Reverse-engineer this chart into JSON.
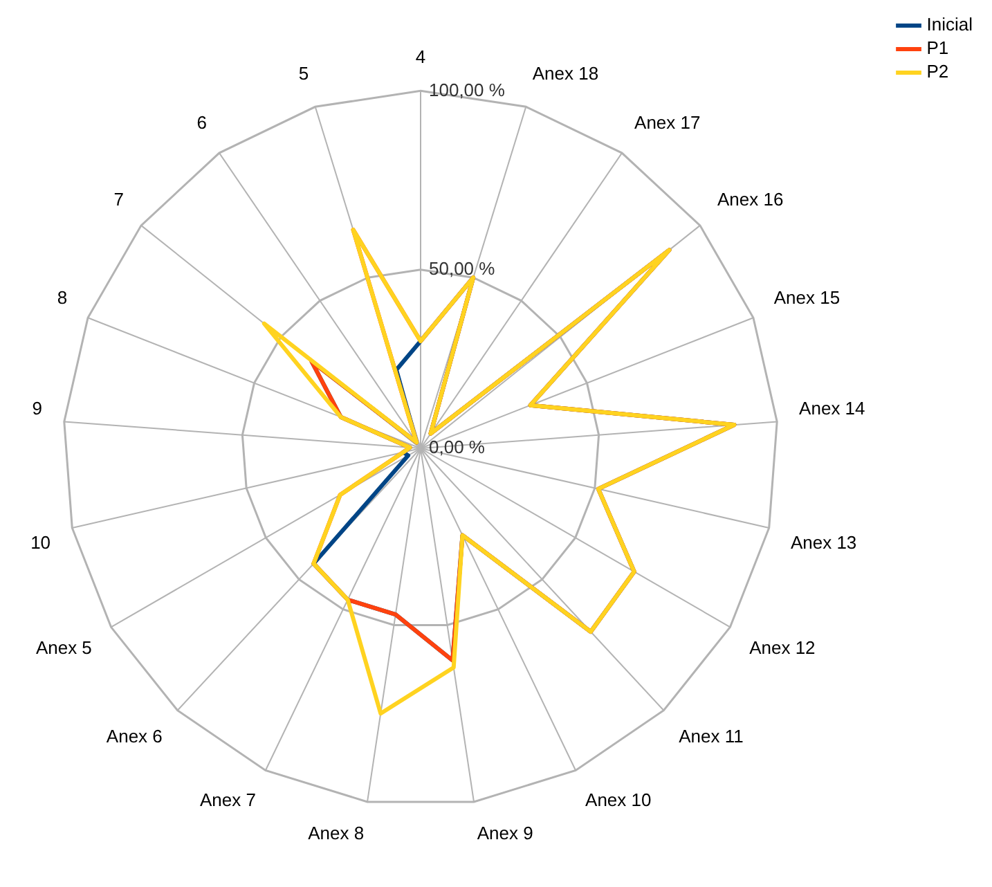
{
  "chart_data": {
    "type": "radar",
    "categories": [
      "4",
      "Anex 18",
      "Anex 17",
      "Anex 16",
      "Anex 15",
      "Anex 14",
      "Anex 13",
      "Anex 12",
      "Anex 11",
      "Anex 10",
      "Anex 9",
      "Anex 8",
      "Anex 7",
      "Anex 6",
      "Anex 5",
      "10",
      "9",
      "8",
      "7",
      "6",
      "5"
    ],
    "series": [
      {
        "name": "Inicial",
        "color": "#004586",
        "values": [
          30,
          50,
          5,
          89,
          33,
          88,
          51,
          69,
          70,
          27,
          60,
          47,
          47,
          44,
          4,
          5,
          3,
          24,
          39,
          2,
          23
        ]
      },
      {
        "name": "P1",
        "color": "#ff420e",
        "values": [
          30,
          50,
          5,
          89,
          33,
          88,
          51,
          69,
          70,
          27,
          60,
          47,
          47,
          44,
          26,
          5,
          3,
          24,
          39,
          2,
          64
        ]
      },
      {
        "name": "P2",
        "color": "#ffd320",
        "values": [
          30,
          50,
          5,
          89,
          33,
          88,
          51,
          69,
          70,
          27,
          62,
          75,
          47,
          44,
          26,
          5,
          3,
          24,
          56,
          2,
          64
        ]
      }
    ],
    "ylim": [
      0,
      100
    ],
    "yticks": [
      {
        "value": 0,
        "label": "0,00 %"
      },
      {
        "value": 50,
        "label": "50,00 %"
      },
      {
        "value": 100,
        "label": "100,00 %"
      }
    ],
    "grid": true,
    "legend": "top right",
    "marker": "none",
    "line_style": "solid"
  }
}
